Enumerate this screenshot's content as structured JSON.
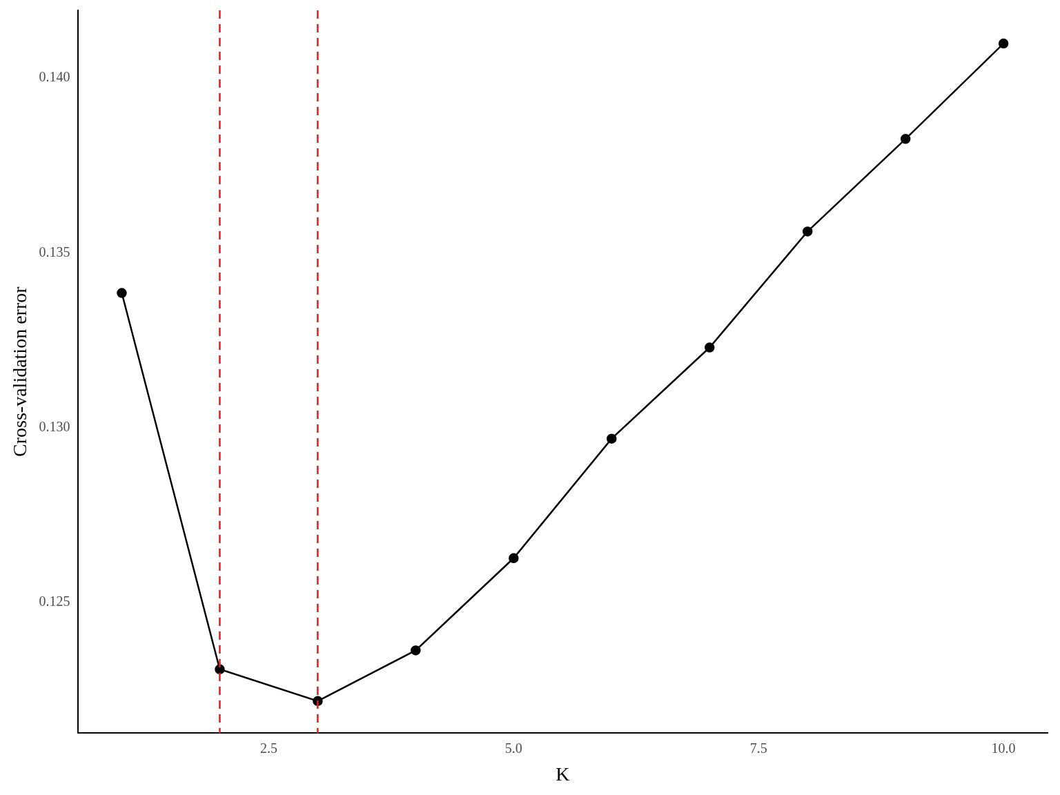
{
  "chart_data": {
    "type": "line",
    "x_label": "K",
    "y_label": "Cross-validation error",
    "x": [
      1,
      2,
      3,
      4,
      5,
      6,
      7,
      8,
      9,
      10
    ],
    "values": [
      0.13385,
      0.12308,
      0.12217,
      0.12362,
      0.12626,
      0.12968,
      0.13229,
      0.13561,
      0.13826,
      0.14099
    ],
    "color": "#000000",
    "marker": "circle",
    "line_style": "solid",
    "vlines": [
      2,
      3
    ],
    "xlim": [
      0.55,
      10.45
    ],
    "ylim": [
      0.12125,
      0.14194
    ],
    "xticks": [
      2.5,
      {
        "value": 5,
        "label": "5.0"
      },
      7.5,
      {
        "value": 10,
        "label": "10.0"
      }
    ],
    "yticks": [
      0.125,
      {
        "value": 0.13,
        "label": "0.130"
      },
      0.135,
      {
        "value": 0.14,
        "label": "0.140"
      }
    ],
    "grid": false
  }
}
